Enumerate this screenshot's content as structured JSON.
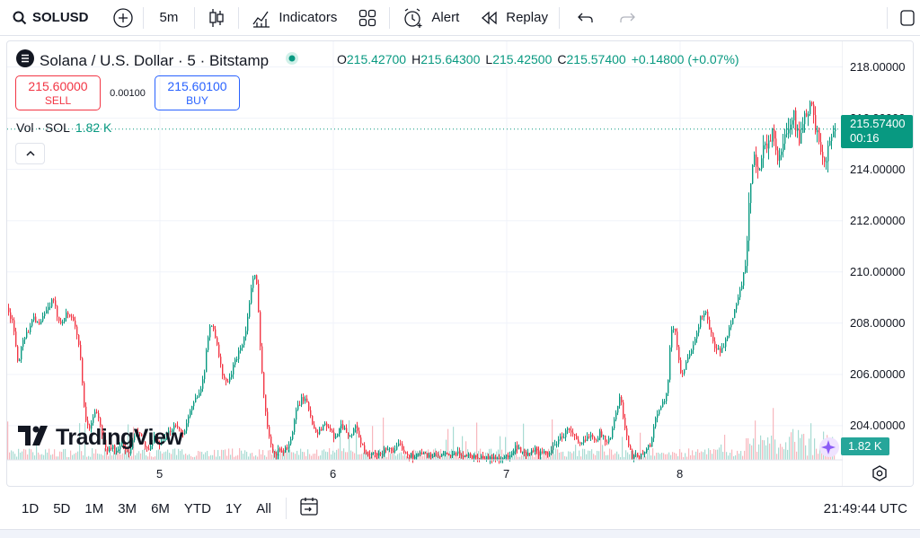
{
  "toolbar": {
    "symbol": "SOLUSD",
    "interval": "5m",
    "indicators_label": "Indicators",
    "alert_label": "Alert",
    "replay_label": "Replay"
  },
  "legend": {
    "title": "Solana / U.S. Dollar · 5 · Bitstamp",
    "ohlc": {
      "o_key": "O",
      "o_val": "215.42700",
      "h_key": "H",
      "h_val": "215.64300",
      "l_key": "L",
      "l_val": "215.42500",
      "c_key": "C",
      "c_val": "215.57400",
      "change": "+0.14800 (+0.07%)"
    },
    "sell_price": "215.60000",
    "sell_label": "SELL",
    "spread": "0.00100",
    "buy_price": "215.60100",
    "buy_label": "BUY",
    "vol_label": "Vol · SOL",
    "vol_value": "1.82 K"
  },
  "price_axis": {
    "labels": [
      "218.00000",
      "216.00000",
      "214.00000",
      "212.00000",
      "210.00000",
      "208.00000",
      "206.00000",
      "204.00000"
    ],
    "current_price": "215.57400",
    "countdown": "00:16",
    "volume_badge": "1.82 K"
  },
  "time_axis": {
    "labels": [
      "5",
      "6",
      "7",
      "8"
    ]
  },
  "branding": {
    "logo_text": "TradingView"
  },
  "range_bar": {
    "buttons": [
      "1D",
      "5D",
      "1M",
      "3M",
      "6M",
      "YTD",
      "1Y",
      "All"
    ],
    "clock": "21:49:44 UTC"
  },
  "colors": {
    "up": "#089981",
    "down": "#f23645",
    "accent": "#2962ff"
  },
  "chart_data": {
    "type": "candlestick",
    "ylim": [
      202.7,
      219.0
    ],
    "close_path": [
      [
        0,
        208.6
      ],
      [
        6,
        207.9
      ],
      [
        12,
        206.3
      ],
      [
        16,
        207.4
      ],
      [
        22,
        207.6
      ],
      [
        28,
        208.3
      ],
      [
        35,
        207.9
      ],
      [
        42,
        208.4
      ],
      [
        50,
        208.9
      ],
      [
        58,
        208.0
      ],
      [
        66,
        208.4
      ],
      [
        74,
        208.1
      ],
      [
        80,
        207.0
      ],
      [
        86,
        204.2
      ],
      [
        92,
        203.9
      ],
      [
        98,
        204.7
      ],
      [
        104,
        203.8
      ],
      [
        110,
        203.0
      ],
      [
        116,
        203.2
      ],
      [
        122,
        202.9
      ],
      [
        128,
        203.4
      ],
      [
        134,
        202.8
      ],
      [
        140,
        203.5
      ],
      [
        146,
        203.8
      ],
      [
        152,
        203.2
      ],
      [
        158,
        203.0
      ],
      [
        164,
        203.6
      ],
      [
        170,
        203.2
      ],
      [
        176,
        203.5
      ],
      [
        182,
        203.9
      ],
      [
        188,
        204.1
      ],
      [
        194,
        203.6
      ],
      [
        200,
        204.2
      ],
      [
        206,
        204.8
      ],
      [
        212,
        205.3
      ],
      [
        218,
        205.8
      ],
      [
        222,
        207.2
      ],
      [
        226,
        208.1
      ],
      [
        230,
        207.7
      ],
      [
        236,
        206.5
      ],
      [
        240,
        205.8
      ],
      [
        246,
        205.7
      ],
      [
        252,
        206.4
      ],
      [
        258,
        207.0
      ],
      [
        264,
        207.5
      ],
      [
        268,
        208.5
      ],
      [
        272,
        209.6
      ],
      [
        276,
        209.9
      ],
      [
        278,
        209.0
      ],
      [
        282,
        206.6
      ],
      [
        286,
        204.7
      ],
      [
        290,
        203.8
      ],
      [
        294,
        203.2
      ],
      [
        298,
        202.8
      ],
      [
        302,
        203.1
      ],
      [
        306,
        203.0
      ],
      [
        312,
        203.2
      ],
      [
        316,
        203.6
      ],
      [
        322,
        204.7
      ],
      [
        328,
        205.1
      ],
      [
        334,
        204.8
      ],
      [
        340,
        204.0
      ],
      [
        346,
        203.7
      ],
      [
        352,
        204.1
      ],
      [
        358,
        203.9
      ],
      [
        364,
        203.4
      ],
      [
        370,
        204.1
      ],
      [
        376,
        203.8
      ],
      [
        382,
        203.6
      ],
      [
        388,
        204.0
      ],
      [
        394,
        203.2
      ],
      [
        400,
        202.8
      ],
      [
        406,
        202.9
      ],
      [
        412,
        202.8
      ],
      [
        418,
        203.0
      ],
      [
        424,
        203.2
      ],
      [
        430,
        202.9
      ],
      [
        436,
        203.3
      ],
      [
        442,
        203.0
      ],
      [
        448,
        202.8
      ],
      [
        460,
        202.9
      ],
      [
        480,
        202.8
      ],
      [
        500,
        202.9
      ],
      [
        520,
        202.8
      ],
      [
        540,
        202.7
      ],
      [
        560,
        202.8
      ],
      [
        566,
        203.2
      ],
      [
        572,
        202.9
      ],
      [
        578,
        202.8
      ],
      [
        586,
        203.1
      ],
      [
        592,
        202.9
      ],
      [
        600,
        202.9
      ],
      [
        606,
        203.1
      ],
      [
        612,
        203.4
      ],
      [
        618,
        203.6
      ],
      [
        624,
        203.9
      ],
      [
        630,
        203.6
      ],
      [
        636,
        203.2
      ],
      [
        642,
        203.4
      ],
      [
        648,
        203.7
      ],
      [
        654,
        203.5
      ],
      [
        660,
        203.7
      ],
      [
        666,
        203.4
      ],
      [
        672,
        203.6
      ],
      [
        678,
        204.8
      ],
      [
        682,
        205.1
      ],
      [
        686,
        204.1
      ],
      [
        690,
        203.4
      ],
      [
        694,
        202.8
      ],
      [
        700,
        202.9
      ],
      [
        706,
        202.8
      ],
      [
        710,
        203.1
      ],
      [
        716,
        203.3
      ],
      [
        722,
        204.5
      ],
      [
        728,
        204.8
      ],
      [
        734,
        205.3
      ],
      [
        738,
        207.6
      ],
      [
        742,
        207.9
      ],
      [
        746,
        206.8
      ],
      [
        750,
        205.9
      ],
      [
        756,
        206.6
      ],
      [
        762,
        206.9
      ],
      [
        766,
        207.5
      ],
      [
        770,
        208.1
      ],
      [
        776,
        208.5
      ],
      [
        782,
        207.7
      ],
      [
        786,
        207.1
      ],
      [
        790,
        206.9
      ],
      [
        796,
        207.0
      ],
      [
        800,
        207.4
      ],
      [
        806,
        208.2
      ],
      [
        810,
        208.6
      ],
      [
        814,
        209.1
      ],
      [
        818,
        209.7
      ],
      [
        822,
        210.4
      ],
      [
        826,
        213.1
      ],
      [
        830,
        214.6
      ],
      [
        834,
        213.8
      ],
      [
        838,
        214.4
      ],
      [
        842,
        215.2
      ],
      [
        846,
        214.8
      ],
      [
        852,
        215.7
      ],
      [
        856,
        214.1
      ],
      [
        860,
        214.6
      ],
      [
        866,
        215.4
      ],
      [
        870,
        215.9
      ],
      [
        874,
        216.2
      ],
      [
        878,
        215.6
      ],
      [
        882,
        215.0
      ],
      [
        886,
        215.8
      ],
      [
        890,
        216.3
      ],
      [
        894,
        216.6
      ],
      [
        898,
        215.6
      ],
      [
        902,
        215.2
      ],
      [
        906,
        214.7
      ],
      [
        910,
        214.4
      ],
      [
        914,
        214.9
      ],
      [
        918,
        215.3
      ],
      [
        921,
        215.57
      ]
    ]
  }
}
